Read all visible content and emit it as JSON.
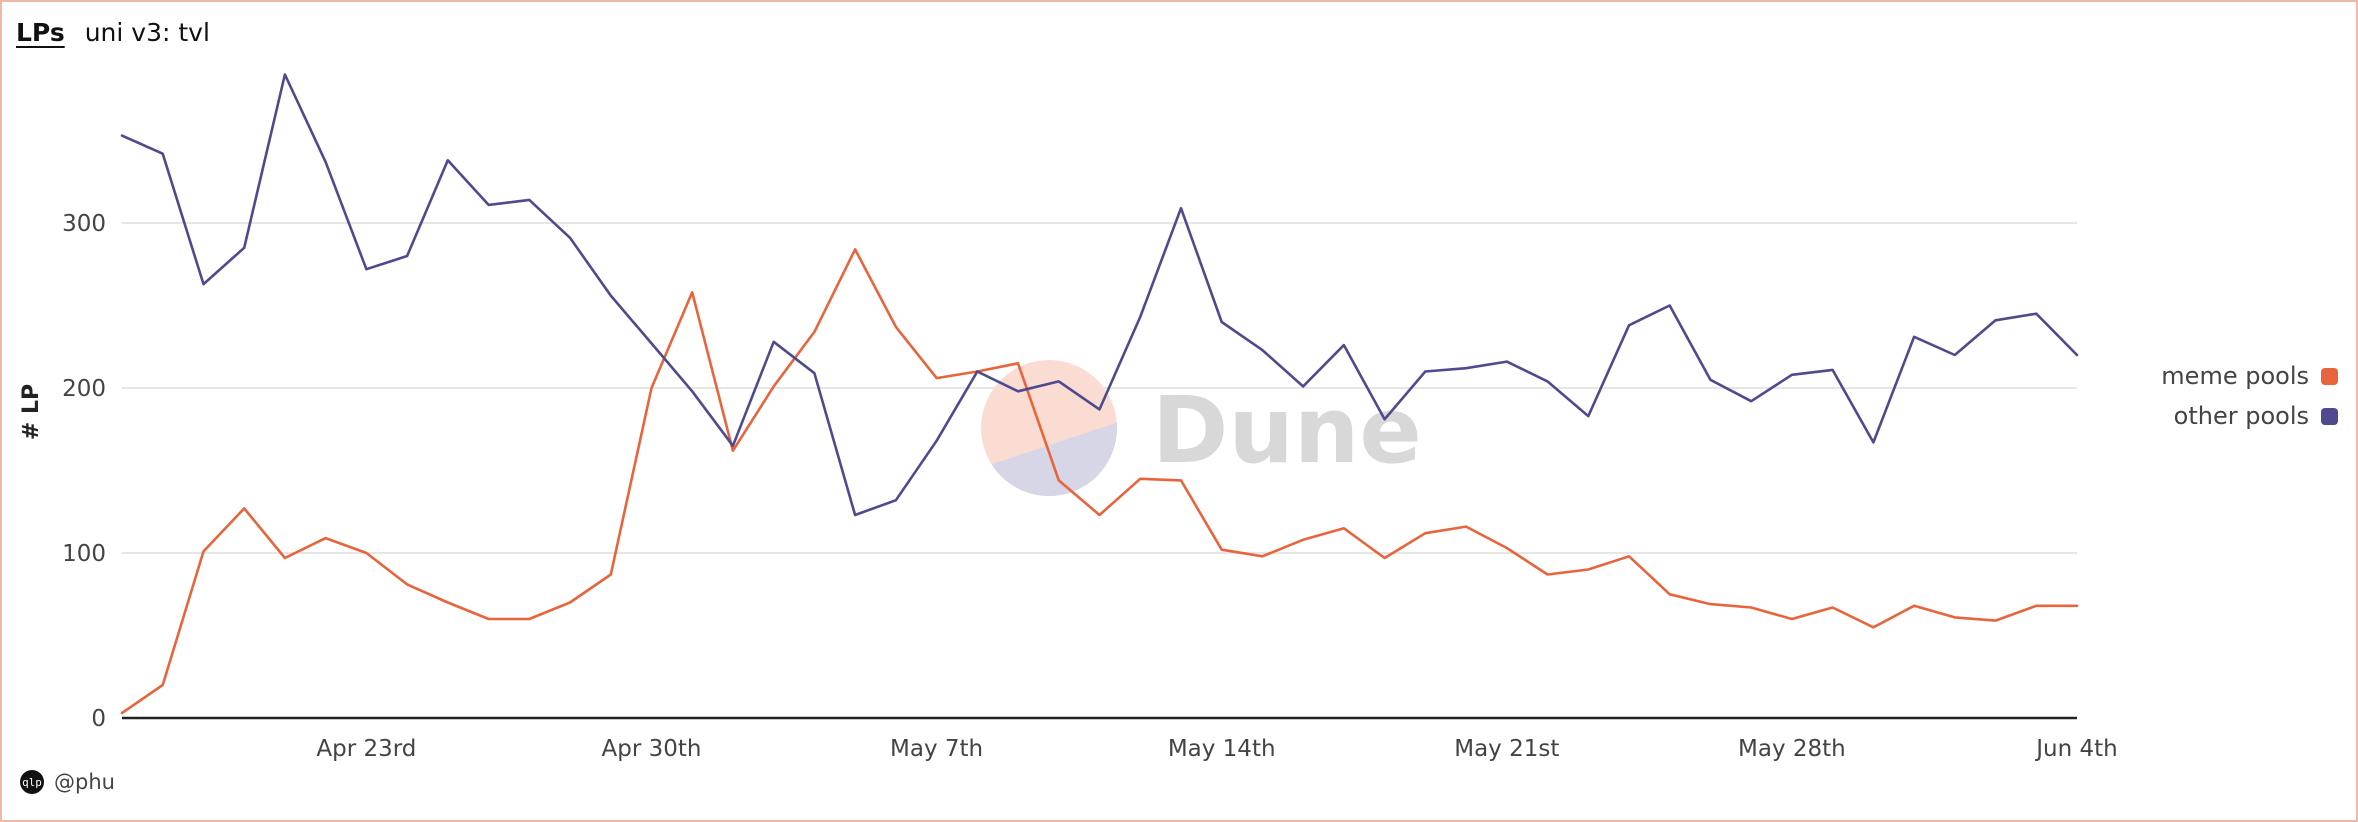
{
  "header": {
    "tab_label": "LPs",
    "subtitle": "uni v3: tvl"
  },
  "watermark": {
    "text": "Dune"
  },
  "author": {
    "avatar_text": "qlp",
    "handle": "@phu"
  },
  "colors": {
    "meme": "#e8643c",
    "other": "#4e4a8e",
    "grid": "#e6e6e6",
    "axis": "#222222"
  },
  "chart_data": {
    "type": "line",
    "title": "uni v3: tvl",
    "xlabel": "",
    "ylabel": "# LP",
    "ylim": [
      0,
      400
    ],
    "yticks": [
      0,
      100,
      200,
      300
    ],
    "x_start": "2024-04-17",
    "x_end": "2024-06-04",
    "xticks": [
      {
        "date": "2024-04-23",
        "label": "Apr 23rd"
      },
      {
        "date": "2024-04-30",
        "label": "Apr 30th"
      },
      {
        "date": "2024-05-07",
        "label": "May 7th"
      },
      {
        "date": "2024-05-14",
        "label": "May 14th"
      },
      {
        "date": "2024-05-21",
        "label": "May 21st"
      },
      {
        "date": "2024-05-28",
        "label": "May 28th"
      },
      {
        "date": "2024-06-04",
        "label": "Jun 4th"
      }
    ],
    "legend_position": "right",
    "grid": true,
    "x": [
      "2024-04-17",
      "2024-04-18",
      "2024-04-19",
      "2024-04-20",
      "2024-04-21",
      "2024-04-22",
      "2024-04-23",
      "2024-04-24",
      "2024-04-25",
      "2024-04-26",
      "2024-04-27",
      "2024-04-28",
      "2024-04-29",
      "2024-04-30",
      "2024-05-01",
      "2024-05-02",
      "2024-05-03",
      "2024-05-04",
      "2024-05-05",
      "2024-05-06",
      "2024-05-07",
      "2024-05-08",
      "2024-05-09",
      "2024-05-10",
      "2024-05-11",
      "2024-05-12",
      "2024-05-13",
      "2024-05-14",
      "2024-05-15",
      "2024-05-16",
      "2024-05-17",
      "2024-05-18",
      "2024-05-19",
      "2024-05-20",
      "2024-05-21",
      "2024-05-22",
      "2024-05-23",
      "2024-05-24",
      "2024-05-25",
      "2024-05-26",
      "2024-05-27",
      "2024-05-28",
      "2024-05-29",
      "2024-05-30",
      "2024-05-31",
      "2024-06-01",
      "2024-06-02",
      "2024-06-03",
      "2024-06-04"
    ],
    "series": [
      {
        "name": "meme pools",
        "color": "#e8643c",
        "values": [
          3,
          20,
          101,
          127,
          97,
          109,
          100,
          81,
          70,
          60,
          60,
          70,
          87,
          200,
          258,
          162,
          201,
          234,
          284,
          237,
          206,
          210,
          215,
          144,
          123,
          145,
          144,
          102,
          98,
          108,
          115,
          97,
          112,
          116,
          103,
          87,
          90,
          98,
          75,
          69,
          67,
          60,
          67,
          55,
          68,
          61,
          59,
          68,
          68
        ]
      },
      {
        "name": "other pools",
        "color": "#4e4a8e",
        "values": [
          353,
          342,
          263,
          285,
          390,
          337,
          272,
          280,
          338,
          311,
          314,
          291,
          256,
          227,
          198,
          165,
          228,
          209,
          123,
          132,
          168,
          210,
          198,
          204,
          187,
          243,
          309,
          240,
          223,
          201,
          226,
          181,
          210,
          212,
          216,
          204,
          183,
          238,
          250,
          205,
          192,
          208,
          211,
          167,
          231,
          220,
          241,
          245,
          220
        ]
      }
    ]
  }
}
